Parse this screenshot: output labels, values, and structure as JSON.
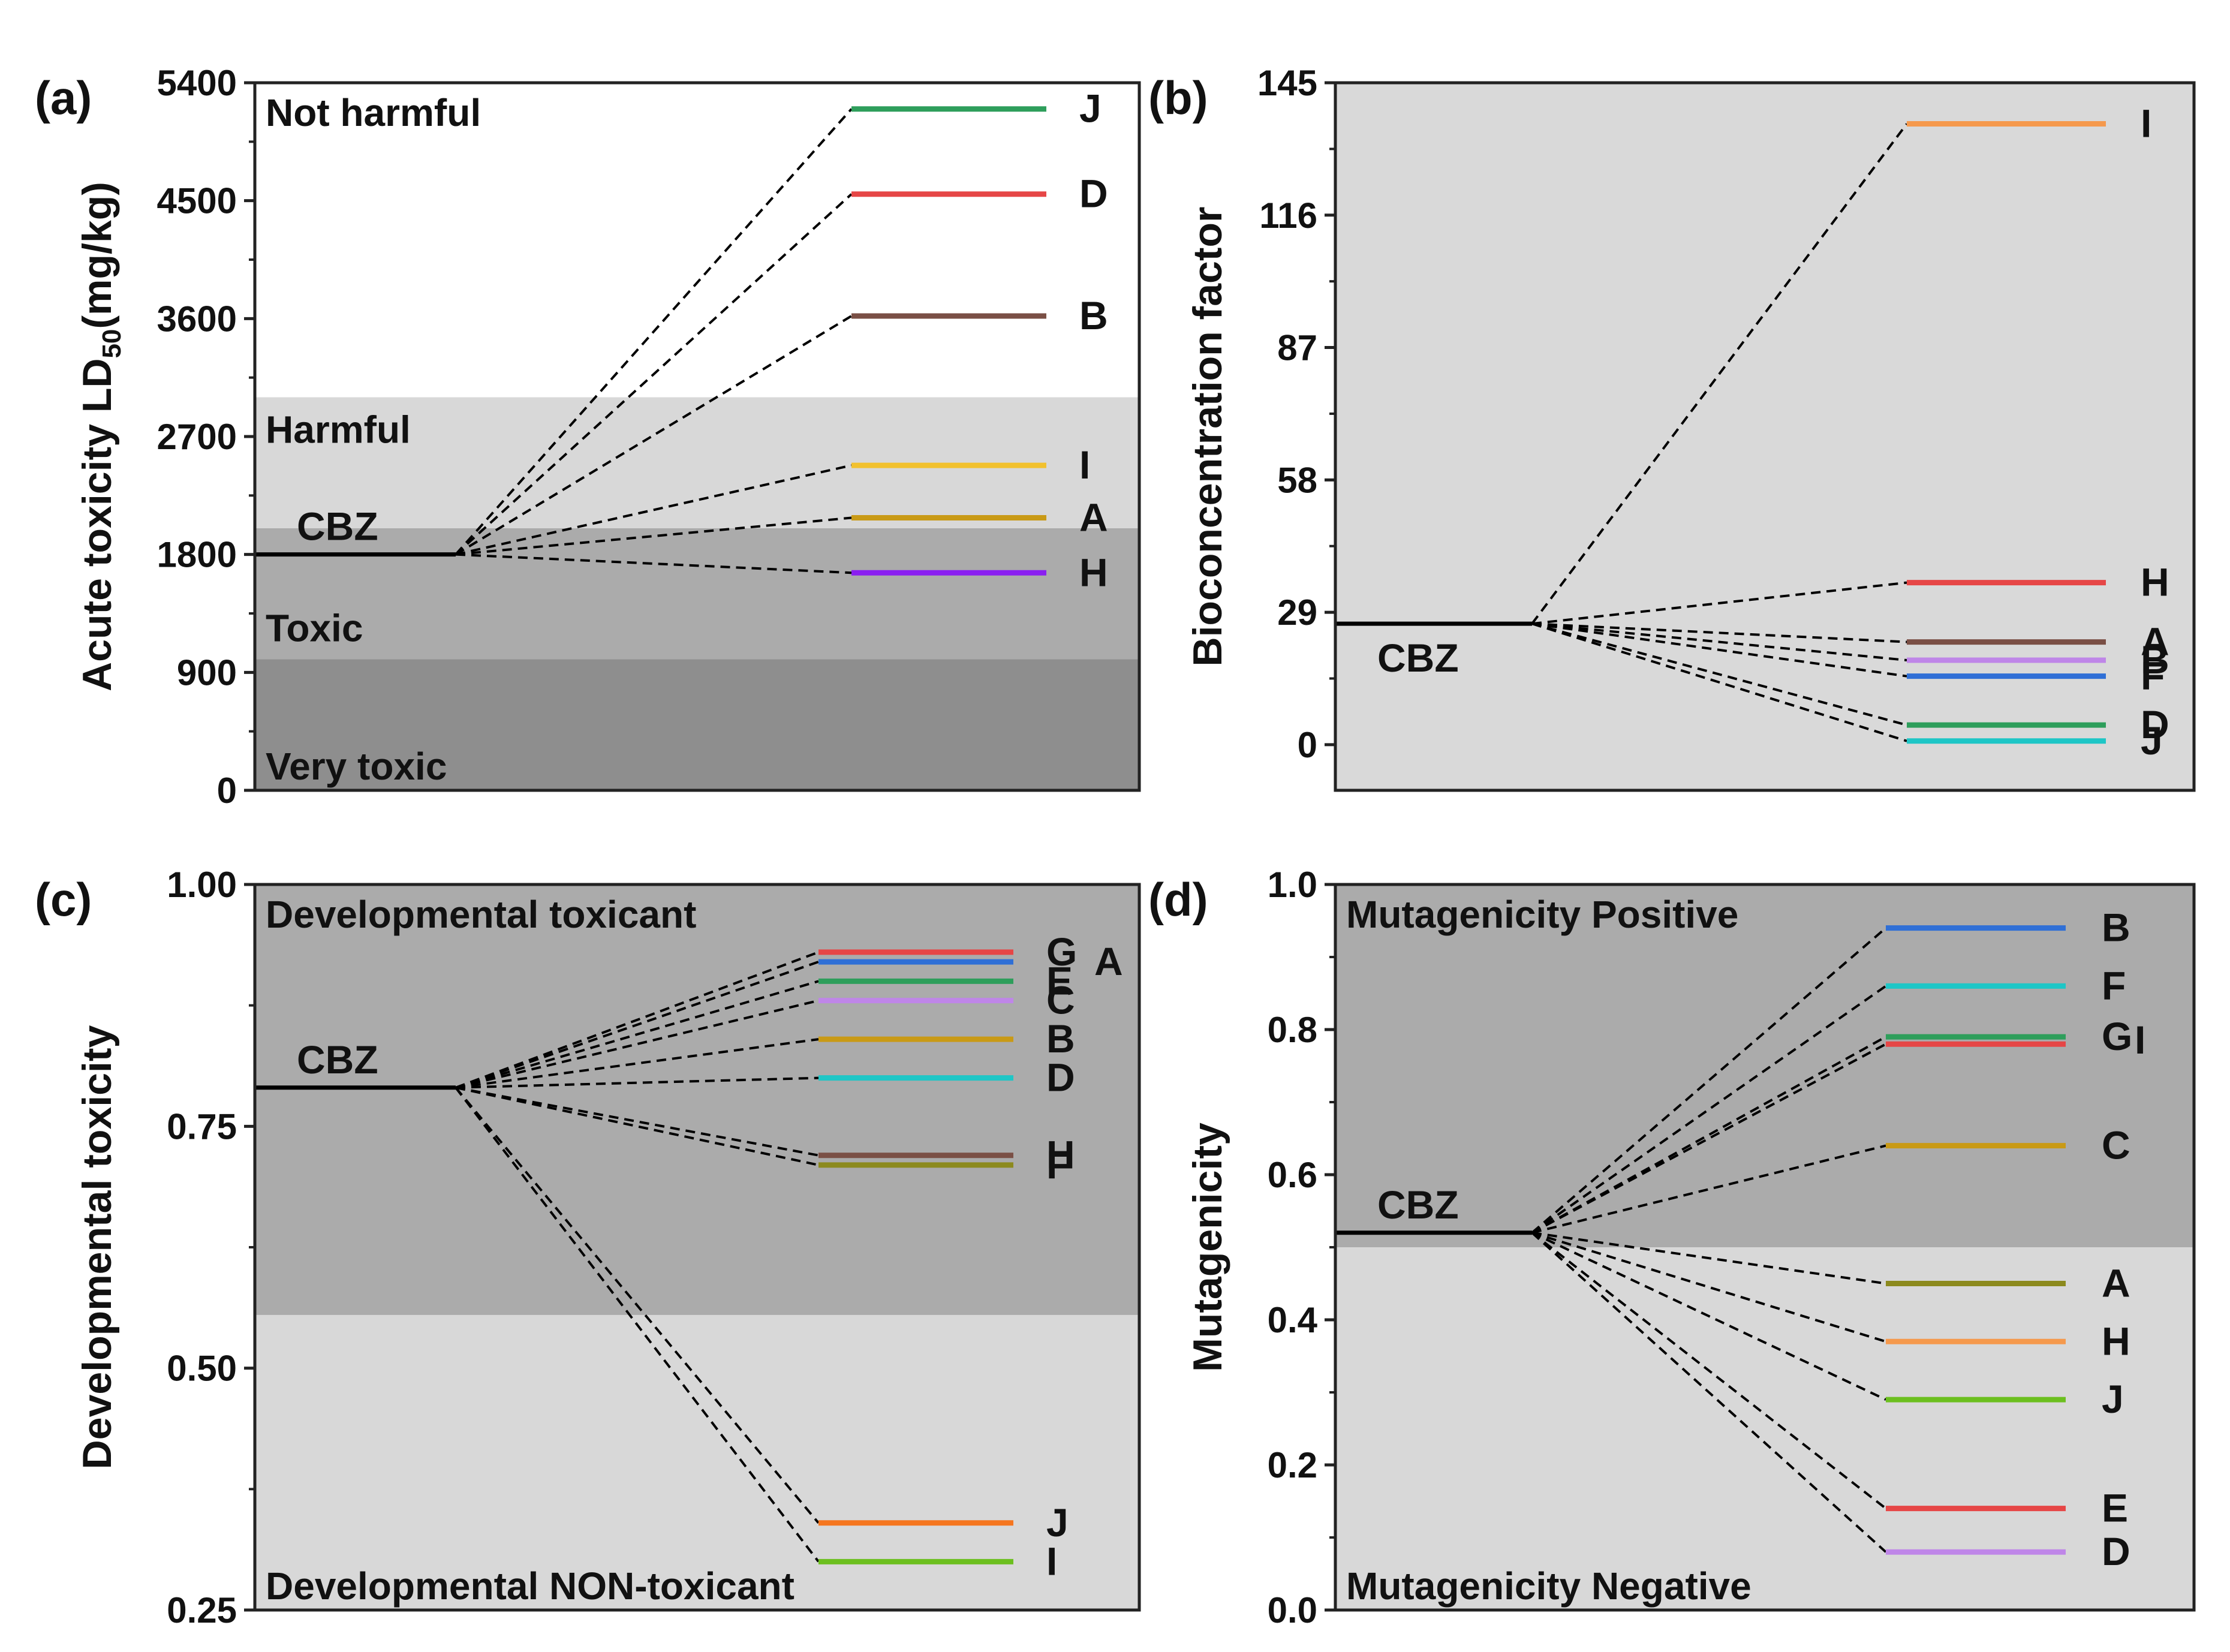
{
  "chart_data": [
    {
      "panel": "(a)",
      "type": "level-diagram",
      "title": "",
      "ylabel": "Acute toxicity LD",
      "ylabel_sub": "50",
      "ylabel_suffix": "(mg/kg)",
      "ylim": [
        0,
        5400
      ],
      "yticks": [
        0,
        900,
        1800,
        2700,
        3600,
        4500,
        5400
      ],
      "tick_labels": [
        "0",
        "900",
        "1800",
        "2700",
        "3600",
        "4500",
        "5400"
      ],
      "regions": [
        {
          "label": "Very toxic",
          "from": 0,
          "to": 1000,
          "color": "#8e8e8e"
        },
        {
          "label": "Toxic",
          "from": 1000,
          "to": 2000,
          "color": "#ababab"
        },
        {
          "label": "Harmful",
          "from": 2000,
          "to": 3000,
          "color": "#d8d8d8"
        },
        {
          "label": "Not harmful",
          "from": 3000,
          "to": 5400,
          "color": "#ffffff"
        }
      ],
      "reference": {
        "label": "CBZ",
        "value": 1800
      },
      "products": [
        {
          "label": "J",
          "value": 5200,
          "color": "#2e9e5b"
        },
        {
          "label": "D",
          "value": 4550,
          "color": "#e64646"
        },
        {
          "label": "B",
          "value": 3620,
          "color": "#7a4f45"
        },
        {
          "label": "I",
          "value": 2480,
          "color": "#f2c12e"
        },
        {
          "label": "A",
          "value": 2080,
          "color": "#c99a16"
        },
        {
          "label": "H",
          "value": 1660,
          "color": "#8a1ff0"
        }
      ]
    },
    {
      "panel": "(b)",
      "type": "level-diagram",
      "title": "",
      "ylabel": "Bioconcentration factor",
      "ylim": [
        -10,
        145
      ],
      "yticks": [
        0,
        29,
        58,
        87,
        116,
        145
      ],
      "tick_labels": [
        "0",
        "29",
        "58",
        "87",
        "116",
        "145"
      ],
      "background": "#d9d9d9",
      "regions": [],
      "reference": {
        "label": "CBZ",
        "value": 26.5
      },
      "products": [
        {
          "label": "I",
          "value": 136,
          "color": "#f5994d"
        },
        {
          "label": "H",
          "value": 35.5,
          "color": "#e64646"
        },
        {
          "label": "A",
          "value": 22.5,
          "color": "#7a4f45"
        },
        {
          "label": "B",
          "value": 18.5,
          "color": "#bf86e8"
        },
        {
          "label": "F",
          "value": 15,
          "color": "#2f6fd6"
        },
        {
          "label": "D",
          "value": 4.3,
          "color": "#2e9e5b"
        },
        {
          "label": "J",
          "value": 0.8,
          "color": "#1ec6c6"
        }
      ]
    },
    {
      "panel": "(c)",
      "type": "level-diagram",
      "title": "",
      "ylabel": "Developmental toxicity",
      "ylim": [
        0.25,
        1.0
      ],
      "yticks": [
        0.25,
        0.5,
        0.75,
        1.0
      ],
      "tick_labels": [
        "0.25",
        "0.50",
        "0.75",
        "1.00"
      ],
      "regions": [
        {
          "label": "Developmental NON-toxicant",
          "from": 0.25,
          "to": 0.555,
          "color": "#d8d8d8"
        },
        {
          "label": "Developmental toxicant",
          "from": 0.555,
          "to": 1.0,
          "color": "#ababab"
        }
      ],
      "reference": {
        "label": "CBZ",
        "value": 0.79
      },
      "products": [
        {
          "label": "G",
          "value": 0.93,
          "color": "#e64646"
        },
        {
          "label": "A",
          "value": 0.92,
          "color": "#2f6fd6"
        },
        {
          "label": "E",
          "value": 0.9,
          "color": "#2e9e5b"
        },
        {
          "label": "C",
          "value": 0.88,
          "color": "#bf86e8"
        },
        {
          "label": "B",
          "value": 0.84,
          "color": "#c99a16"
        },
        {
          "label": "D",
          "value": 0.8,
          "color": "#1ec6c6"
        },
        {
          "label": "H",
          "value": 0.72,
          "color": "#7a4f45"
        },
        {
          "label": "F",
          "value": 0.71,
          "color": "#8c8a1e"
        },
        {
          "label": "J",
          "value": 0.34,
          "color": "#f5761f"
        },
        {
          "label": "I",
          "value": 0.3,
          "color": "#6cbf1f"
        }
      ]
    },
    {
      "panel": "(d)",
      "type": "level-diagram",
      "title": "",
      "ylabel": "Mutagenicity",
      "ylim": [
        0.0,
        1.0
      ],
      "yticks": [
        0.0,
        0.2,
        0.4,
        0.6,
        0.8,
        1.0
      ],
      "tick_labels": [
        "0.0",
        "0.2",
        "0.4",
        "0.6",
        "0.8",
        "1.0"
      ],
      "regions": [
        {
          "label": "Mutagenicity Negative",
          "from": 0.0,
          "to": 0.5,
          "color": "#d8d8d8"
        },
        {
          "label": "Mutagenicity Positive",
          "from": 0.5,
          "to": 1.0,
          "color": "#ababab"
        }
      ],
      "reference": {
        "label": "CBZ",
        "value": 0.52
      },
      "products": [
        {
          "label": "B",
          "value": 0.94,
          "color": "#2f6fd6"
        },
        {
          "label": "F",
          "value": 0.86,
          "color": "#1ec6c6"
        },
        {
          "label": "G",
          "value": 0.79,
          "color": "#2e9e5b"
        },
        {
          "label": "I",
          "value": 0.78,
          "color": "#e64646"
        },
        {
          "label": "C",
          "value": 0.64,
          "color": "#c99a16"
        },
        {
          "label": "A",
          "value": 0.45,
          "color": "#8c8a1e"
        },
        {
          "label": "H",
          "value": 0.37,
          "color": "#f5994d"
        },
        {
          "label": "J",
          "value": 0.29,
          "color": "#6cbf1f"
        },
        {
          "label": "E",
          "value": 0.14,
          "color": "#e64646"
        },
        {
          "label": "D",
          "value": 0.08,
          "color": "#bf86e8"
        }
      ]
    }
  ]
}
